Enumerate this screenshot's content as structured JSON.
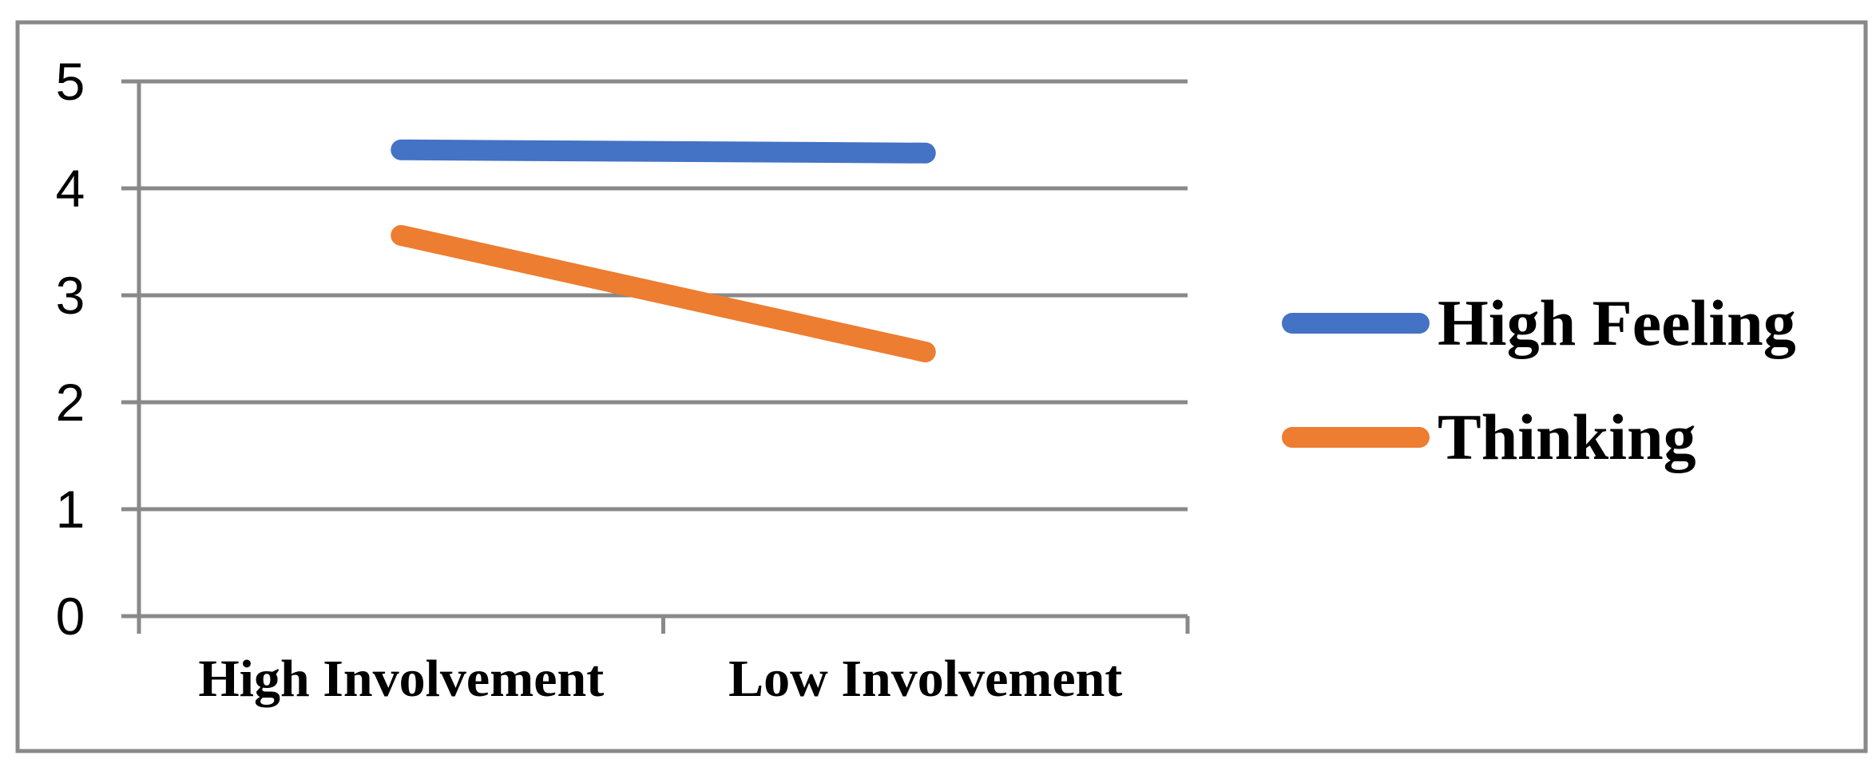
{
  "chart_data": {
    "type": "line",
    "title": "",
    "categories": [
      "High Involvement",
      "Low Involvement"
    ],
    "series": [
      {
        "name": "High Feeling",
        "color": "#4472C4",
        "values": [
          4.36,
          4.33
        ]
      },
      {
        "name": "Thinking",
        "color": "#ED7D31",
        "values": [
          3.56,
          2.47
        ]
      }
    ],
    "xlabel": "",
    "ylabel": "",
    "ylim": [
      0,
      5
    ],
    "yticks": [
      0,
      1,
      2,
      3,
      4,
      5
    ],
    "grid": true,
    "legend_position": "right-center"
  },
  "colors": {
    "gridline": "#898989",
    "axis": "#898989",
    "frame_border": "#898989",
    "label_text": "#000000",
    "background": "#FFFFFF"
  }
}
